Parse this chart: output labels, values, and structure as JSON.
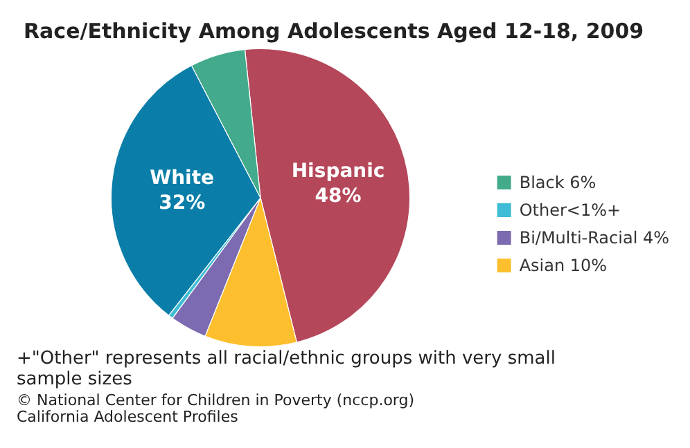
{
  "chart_data": {
    "type": "pie",
    "title": "Race/Ethnicity Among Adolescents Aged 12-18, 2009",
    "categories": [
      "Hispanic",
      "Asian",
      "Bi/Multi-Racial",
      "Other",
      "White",
      "Black"
    ],
    "values": [
      48,
      10,
      4,
      0.5,
      32,
      6
    ],
    "value_labels": [
      "48%",
      "10%",
      "4%",
      "<1%+",
      "32%",
      "6%"
    ],
    "colors": [
      "#b5475a",
      "#fdbf2d",
      "#7c6bb0",
      "#3fbcd6",
      "#0a7ea8",
      "#43aa8b"
    ],
    "legend": "right",
    "annotations": [
      "+\"Other\" represents all racial/ethnic groups with very small sample sizes",
      "© National Center for Children in Poverty (nccp.org)",
      "California Adolescent Profiles"
    ]
  }
}
